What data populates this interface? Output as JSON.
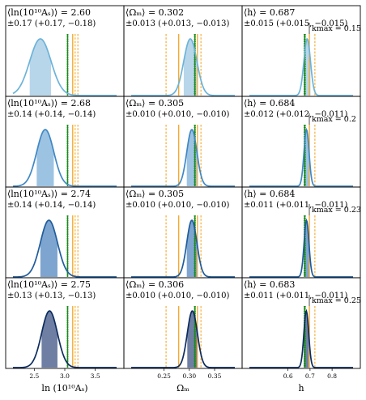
{
  "colors": {
    "fill": [
      "#b8d6ea",
      "#9dc3e2",
      "#7ea5cf",
      "#6e7fa3"
    ],
    "curve": [
      "#6cb3d9",
      "#3f88c5",
      "#1f5c9c",
      "#0d2c5e"
    ],
    "truth": "#1a8a1a",
    "reference": "#f5a623"
  },
  "columns": [
    {
      "param": "lnAs",
      "xlabel": "ln (10¹⁰Aₛ)",
      "xlim": [
        2.15,
        3.85
      ],
      "ticks": [
        2.5,
        3.0,
        3.5
      ],
      "tick_labels": [
        "2.5",
        "3.0",
        "3.5"
      ],
      "truth": [
        3.04,
        3.046,
        3.052
      ],
      "reference_solid": [
        3.13
      ],
      "reference_dashed": [
        3.17,
        3.215
      ]
    },
    {
      "param": "Omega_m",
      "xlabel": "Ωₘ",
      "xlim": [
        0.185,
        0.39
      ],
      "ticks": [
        0.25,
        0.3,
        0.35
      ],
      "tick_labels": [
        "0.25",
        "0.30",
        "0.35"
      ],
      "truth": [
        0.31,
        0.311,
        0.312
      ],
      "reference_solid": [
        0.279,
        0.316
      ],
      "reference_dashed": [
        0.254,
        0.323
      ]
    },
    {
      "param": "h",
      "xlabel": "h",
      "xlim": [
        0.425,
        0.895
      ],
      "ticks": [
        0.6,
        0.7,
        0.8
      ],
      "tick_labels": [
        "0.6",
        "0.7",
        "0.8"
      ],
      "truth": [
        0.673,
        0.676,
        0.679
      ],
      "reference_solid": [
        0.697
      ],
      "reference_dashed": [
        0.722
      ]
    }
  ],
  "chart_data": {
    "type": "area",
    "description_rows": "marginal posteriors for increasing kmax",
    "rows": [
      {
        "kmax_label": "kmax = 0.15",
        "panels": [
          {
            "label": "⟨ln(10¹⁰Aₛ)⟩ = 2.60",
            "err": "±0.17 (+0.17, −0.18)",
            "mean": 2.6,
            "sigma": 0.175
          },
          {
            "label": "⟨Ωₘ⟩ = 0.302",
            "err": "±0.013 (+0.013, −0.013)",
            "mean": 0.302,
            "sigma": 0.013
          },
          {
            "label": "⟨h⟩ = 0.687",
            "err": "±0.015 (+0.015, −0.015)",
            "mean": 0.687,
            "sigma": 0.015
          }
        ]
      },
      {
        "kmax_label": "kmax = 0.2",
        "panels": [
          {
            "label": "⟨ln(10¹⁰Aₛ)⟩ = 2.68",
            "err": "±0.14 (+0.14, −0.14)",
            "mean": 2.68,
            "sigma": 0.14
          },
          {
            "label": "⟨Ωₘ⟩ = 0.305",
            "err": "±0.010 (+0.010, −0.010)",
            "mean": 0.305,
            "sigma": 0.01
          },
          {
            "label": "⟨h⟩ = 0.684",
            "err": "±0.012 (+0.012, −0.011)",
            "mean": 0.684,
            "sigma": 0.0115
          }
        ]
      },
      {
        "kmax_label": "kmax = 0.23",
        "panels": [
          {
            "label": "⟨ln(10¹⁰Aₛ)⟩ = 2.74",
            "err": "±0.14 (+0.14, −0.14)",
            "mean": 2.74,
            "sigma": 0.14
          },
          {
            "label": "⟨Ωₘ⟩ = 0.305",
            "err": "±0.010 (+0.010, −0.010)",
            "mean": 0.305,
            "sigma": 0.01
          },
          {
            "label": "⟨h⟩ = 0.684",
            "err": "±0.011 (+0.011, −0.011)",
            "mean": 0.684,
            "sigma": 0.011
          }
        ]
      },
      {
        "kmax_label": "kmax = 0.25",
        "panels": [
          {
            "label": "⟨ln(10¹⁰Aₛ)⟩ = 2.75",
            "err": "±0.13 (+0.13, −0.13)",
            "mean": 2.75,
            "sigma": 0.13
          },
          {
            "label": "⟨Ωₘ⟩ = 0.306",
            "err": "±0.010 (+0.010, −0.010)",
            "mean": 0.306,
            "sigma": 0.01
          },
          {
            "label": "⟨h⟩ = 0.683",
            "err": "±0.011 (+0.011, −0.011)",
            "mean": 0.683,
            "sigma": 0.011
          }
        ]
      }
    ]
  }
}
